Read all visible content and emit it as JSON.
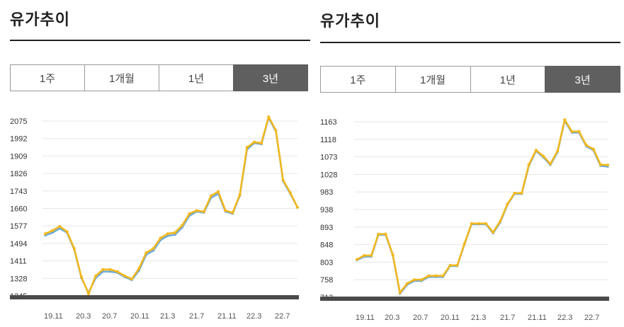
{
  "panels": [
    {
      "title": "유가추이",
      "tabs": [
        {
          "label": "1주",
          "active": false
        },
        {
          "label": "1개월",
          "active": false
        },
        {
          "label": "1년",
          "active": false
        },
        {
          "label": "3년",
          "active": true
        }
      ]
    },
    {
      "title": "유가추이",
      "tabs": [
        {
          "label": "1주",
          "active": false
        },
        {
          "label": "1개월",
          "active": false
        },
        {
          "label": "1년",
          "active": false
        },
        {
          "label": "3년",
          "active": true
        }
      ]
    }
  ],
  "chart_data": [
    {
      "type": "line",
      "title": "",
      "xlabel": "",
      "ylabel": "",
      "ylim": [
        1245,
        2075
      ],
      "yticks": [
        "2075",
        "1992",
        "1909",
        "1826",
        "1743",
        "1660",
        "1577",
        "1494",
        "1411",
        "1328",
        "1245"
      ],
      "xticks": [
        "19.11",
        "20.3",
        "20.7",
        "20.11",
        "21.3",
        "21.7",
        "21.11",
        "22.3",
        "22.7"
      ],
      "grid": true,
      "colors": {
        "primary": "#f2b81f",
        "secondary": "#6aa8d8",
        "baseline": "#4a4a4a"
      },
      "series": [
        {
          "values": [
            1532,
            1545,
            1565,
            1545,
            1465,
            1330,
            1260,
            1330,
            1360,
            1360,
            1355,
            1335,
            1320,
            1365,
            1440,
            1460,
            1510,
            1530,
            1535,
            1570,
            1625,
            1645,
            1640,
            1710,
            1730,
            1645,
            1635,
            1720,
            1940,
            1970,
            1965,
            2090,
            2025,
            1790,
            1730,
            1665
          ]
        },
        {
          "values": [
            1540,
            1555,
            1575,
            1550,
            1470,
            1335,
            1255,
            1340,
            1370,
            1370,
            1360,
            1340,
            1325,
            1375,
            1450,
            1470,
            1520,
            1540,
            1545,
            1580,
            1635,
            1650,
            1645,
            1720,
            1740,
            1650,
            1640,
            1725,
            1950,
            1975,
            1970,
            2095,
            2030,
            1795,
            1735,
            1665
          ]
        }
      ]
    },
    {
      "type": "line",
      "title": "",
      "xlabel": "",
      "ylabel": "",
      "ylim": [
        713,
        1163
      ],
      "yticks": [
        "1163",
        "1118",
        "1073",
        "1028",
        "983",
        "938",
        "893",
        "848",
        "803",
        "758",
        "713"
      ],
      "xticks": [
        "19.11",
        "20.3",
        "20.7",
        "20.11",
        "21.3",
        "21.7",
        "21.11",
        "22.3",
        "22.7"
      ],
      "grid": true,
      "colors": {
        "primary": "#f2b81f",
        "secondary": "#6aa8d8",
        "baseline": "#4a4a4a"
      },
      "series": [
        {
          "values": [
            808,
            817,
            817,
            873,
            873,
            820,
            722,
            745,
            755,
            755,
            765,
            765,
            765,
            793,
            793,
            848,
            900,
            900,
            900,
            877,
            905,
            950,
            978,
            978,
            1050,
            1088,
            1072,
            1052,
            1085,
            1165,
            1135,
            1135,
            1100,
            1090,
            1050,
            1048
          ]
        },
        {
          "values": [
            810,
            820,
            820,
            875,
            875,
            822,
            725,
            748,
            758,
            758,
            768,
            768,
            768,
            795,
            795,
            850,
            902,
            902,
            902,
            880,
            908,
            952,
            980,
            980,
            1053,
            1090,
            1075,
            1055,
            1088,
            1168,
            1138,
            1138,
            1103,
            1093,
            1053,
            1052
          ]
        }
      ]
    }
  ]
}
